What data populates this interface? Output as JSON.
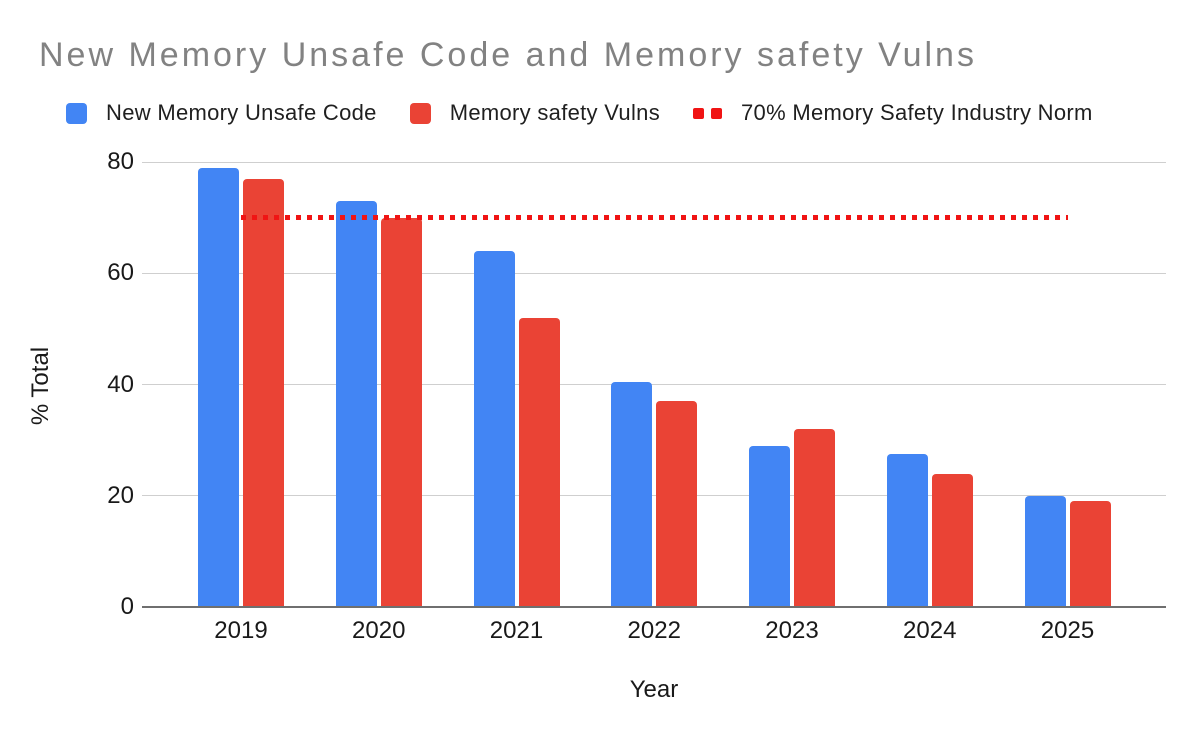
{
  "title": {
    "text": "New Memory Unsafe Code and Memory safety Vulns"
  },
  "chart_data": {
    "type": "bar",
    "title": "New Memory Unsafe Code and Memory safety Vulns",
    "categories": [
      "2019",
      "2020",
      "2021",
      "2022",
      "2023",
      "2024",
      "2025"
    ],
    "series": [
      {
        "name": "New Memory Unsafe Code",
        "color": "#4285F4",
        "values": [
          79,
          73,
          64,
          40.5,
          29,
          27.5,
          20
        ]
      },
      {
        "name": "Memory safety Vulns",
        "color": "#EA4335",
        "values": [
          77,
          70,
          52,
          37,
          32,
          24,
          19
        ]
      }
    ],
    "reference_line": {
      "name": "70% Memory Safety Industry Norm",
      "value": 70,
      "color": "#F01414",
      "style": "dotted"
    },
    "xlabel": "Year",
    "ylabel": "% Total",
    "ylim": [
      0,
      80
    ],
    "y_ticks": [
      0,
      20,
      40,
      60,
      80
    ],
    "grid": true,
    "legend_position": "top"
  }
}
